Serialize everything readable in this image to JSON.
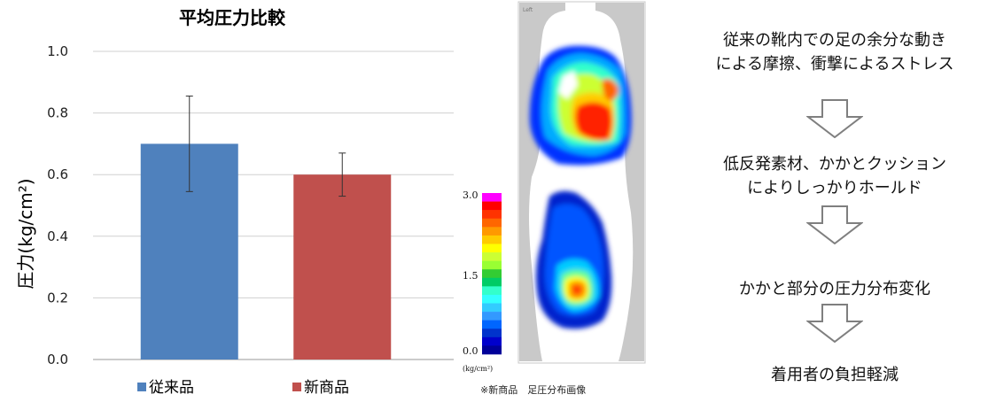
{
  "chart_data": {
    "type": "bar",
    "title": "平均圧力比較",
    "ylabel": "圧力(kg/cm²)",
    "ylim": [
      0.0,
      1.0
    ],
    "yticks": [
      "0.0",
      "0.2",
      "0.4",
      "0.6",
      "0.8",
      "1.0"
    ],
    "grid": true,
    "legend_position": "bottom",
    "categories": [
      "従来品",
      "新商品"
    ],
    "values": [
      0.7,
      0.6
    ],
    "error": [
      [
        0.545,
        0.855
      ],
      [
        0.53,
        0.67
      ]
    ],
    "colors": [
      "#4F81BD",
      "#C0504D"
    ]
  },
  "heatmap_panel": {
    "corner_label": "Left",
    "scale_labels": [
      "3.0",
      "1.5",
      "0.0"
    ],
    "scale_unit": "(kg/cm²)",
    "scale_colors": [
      "#ff00ff",
      "#ff0000",
      "#ff3300",
      "#ff6600",
      "#ff9900",
      "#ffcc00",
      "#ffff00",
      "#ccff33",
      "#99ff33",
      "#33cc33",
      "#00cc66",
      "#33ffcc",
      "#33ffff",
      "#33ccff",
      "#3399ff",
      "#0066ff",
      "#0033cc",
      "#0000cc",
      "#000099"
    ],
    "caption": "※新商品　足圧分布画像"
  },
  "flow": {
    "step1_line1": "従来の靴内での足の余分な動き",
    "step1_line2": "による摩擦、衝撃によるストレス",
    "step2_line1": "低反発素材、かかとクッション",
    "step2_line2": "によりしっかりホールド",
    "step3": "かかと部分の圧力分布変化",
    "step4": "着用者の負担軽減"
  }
}
